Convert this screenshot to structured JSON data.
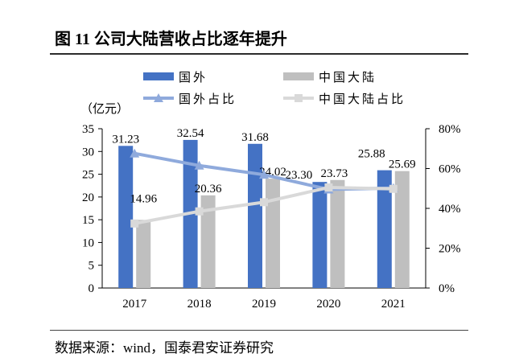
{
  "title": "图 11 公司大陆营收占比逐年提升",
  "source": "数据来源：wind，国泰君安证券研究",
  "chart_data": {
    "type": "bar",
    "categories": [
      "2017",
      "2018",
      "2019",
      "2020",
      "2021"
    ],
    "ylabel": "（亿元）",
    "ylim": [
      0,
      35
    ],
    "yticks": [
      "0",
      "5",
      "10",
      "15",
      "20",
      "25",
      "30",
      "35"
    ],
    "y2lim": [
      0,
      80
    ],
    "y2ticks": [
      "0%",
      "20%",
      "40%",
      "60%",
      "80%"
    ],
    "grid": false,
    "legend_position": "top",
    "series": [
      {
        "name": "国外",
        "type": "bar",
        "axis": "left",
        "color": "#4472C4",
        "values": [
          31.23,
          32.54,
          31.68,
          23.3,
          25.88
        ],
        "labels": [
          "31.23",
          "32.54",
          "31.68",
          "23.30",
          "25.88"
        ]
      },
      {
        "name": "中国大陆",
        "type": "bar",
        "axis": "left",
        "color": "#BFBFBF",
        "values": [
          14.96,
          20.36,
          24.02,
          23.73,
          25.69
        ],
        "labels": [
          "14.96",
          "20.36",
          "24.02",
          "23.73",
          "25.69"
        ]
      },
      {
        "name": "国外占比",
        "type": "line",
        "axis": "right",
        "marker": "triangle",
        "color": "#8FAADC",
        "values": [
          67.6,
          61.5,
          56.9,
          49.5,
          50.2
        ]
      },
      {
        "name": "中国大陆占比",
        "type": "line",
        "axis": "right",
        "marker": "square",
        "color": "#D9D9D9",
        "values": [
          32.4,
          38.5,
          43.1,
          50.5,
          49.8
        ]
      }
    ]
  }
}
